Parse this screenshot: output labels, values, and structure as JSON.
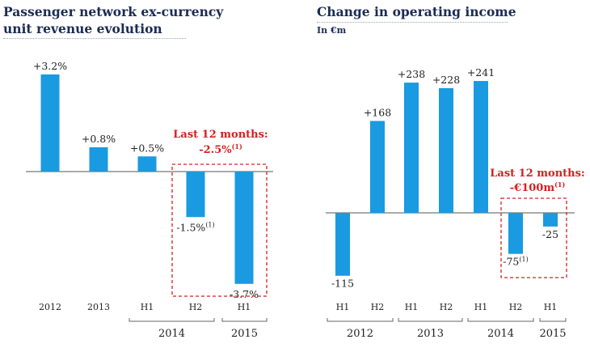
{
  "charts": {
    "left": {
      "title_line1": "Passenger network ex-currency",
      "title_line2": "unit revenue evolution"
    },
    "right": {
      "title": "Change in operating income",
      "subtitle": "In €m"
    }
  },
  "colors": {
    "bar": "#1a9ae0",
    "highlight": "#d42020",
    "title": "#1a2b55"
  },
  "chart_data": [
    {
      "type": "bar",
      "title": "Passenger network ex-currency unit revenue evolution",
      "unit": "%",
      "categories": [
        "2012",
        "2013",
        "H1",
        "H2",
        "H1"
      ],
      "groups": [
        {
          "label": "2014",
          "members": [
            "H1",
            "H2"
          ]
        },
        {
          "label": "2015",
          "members": [
            "H1"
          ]
        }
      ],
      "values": [
        3.2,
        0.8,
        0.5,
        -1.5,
        -3.7
      ],
      "value_labels": [
        "+3.2%",
        "+0.8%",
        "+0.5%",
        "-1.5%",
        "-3.7%"
      ],
      "value_label_footnotes": [
        "",
        "",
        "",
        "(1)",
        ""
      ],
      "highlight": {
        "indices": [
          3,
          4
        ],
        "line1": "Last 12 months:",
        "line2": "-2.5%",
        "footnote": "(1)"
      }
    },
    {
      "type": "bar",
      "title": "Change in operating income",
      "unit": "€m",
      "categories": [
        "H1",
        "H2",
        "H1",
        "H2",
        "H1",
        "H2",
        "H1"
      ],
      "groups": [
        {
          "label": "2012",
          "members": [
            "H1",
            "H2"
          ]
        },
        {
          "label": "2013",
          "members": [
            "H1",
            "H2"
          ]
        },
        {
          "label": "2014",
          "members": [
            "H1",
            "H2"
          ]
        },
        {
          "label": "2015",
          "members": [
            "H1"
          ]
        }
      ],
      "values": [
        -115,
        168,
        238,
        228,
        241,
        -75,
        -25
      ],
      "value_labels": [
        "-115",
        "+168",
        "+238",
        "+228",
        "+241",
        "-75",
        "-25"
      ],
      "value_label_footnotes": [
        "",
        "",
        "",
        "",
        "",
        "(1)",
        ""
      ],
      "highlight": {
        "indices": [
          5,
          6
        ],
        "line1": "Last 12 months:",
        "line2": "-€100m",
        "footnote": "(1)"
      }
    }
  ]
}
